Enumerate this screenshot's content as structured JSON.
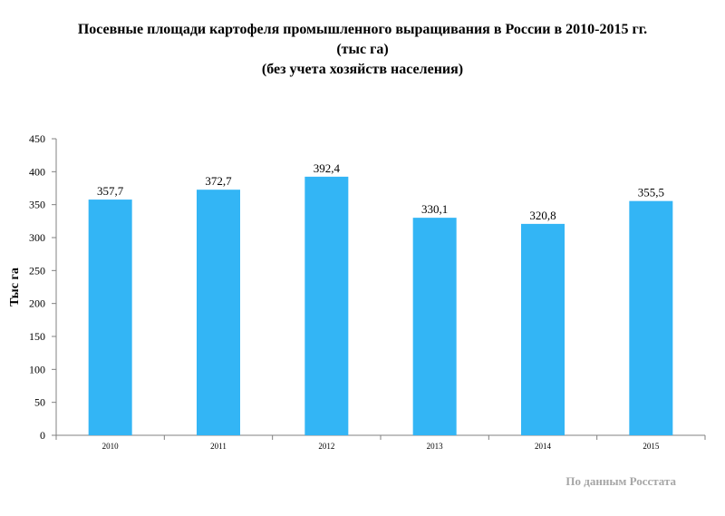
{
  "title_lines": [
    "Посевные площади картофеля промышленного выращивания в России в 2010-2015 гг.",
    "(тыс га)",
    "(без учета хозяйств населения)"
  ],
  "source_note": "По данным Росстата",
  "colors": {
    "bar": "#33b5f5",
    "axis": "#808080",
    "text": "#000000",
    "source": "#a6a6a6"
  },
  "chart_data": {
    "type": "bar",
    "categories": [
      "2010",
      "2011",
      "2012",
      "2013",
      "2014",
      "2015"
    ],
    "values": [
      357.7,
      372.7,
      392.4,
      330.1,
      320.8,
      355.5
    ],
    "data_labels": [
      "357,7",
      "372,7",
      "392,4",
      "330,1",
      "320,8",
      "355,5"
    ],
    "ylabel": "Тыс га",
    "xlabel": "",
    "ylim": [
      0,
      450
    ],
    "yticks": [
      0,
      50,
      100,
      150,
      200,
      250,
      300,
      350,
      400,
      450
    ],
    "grid": false,
    "legend": "none"
  }
}
